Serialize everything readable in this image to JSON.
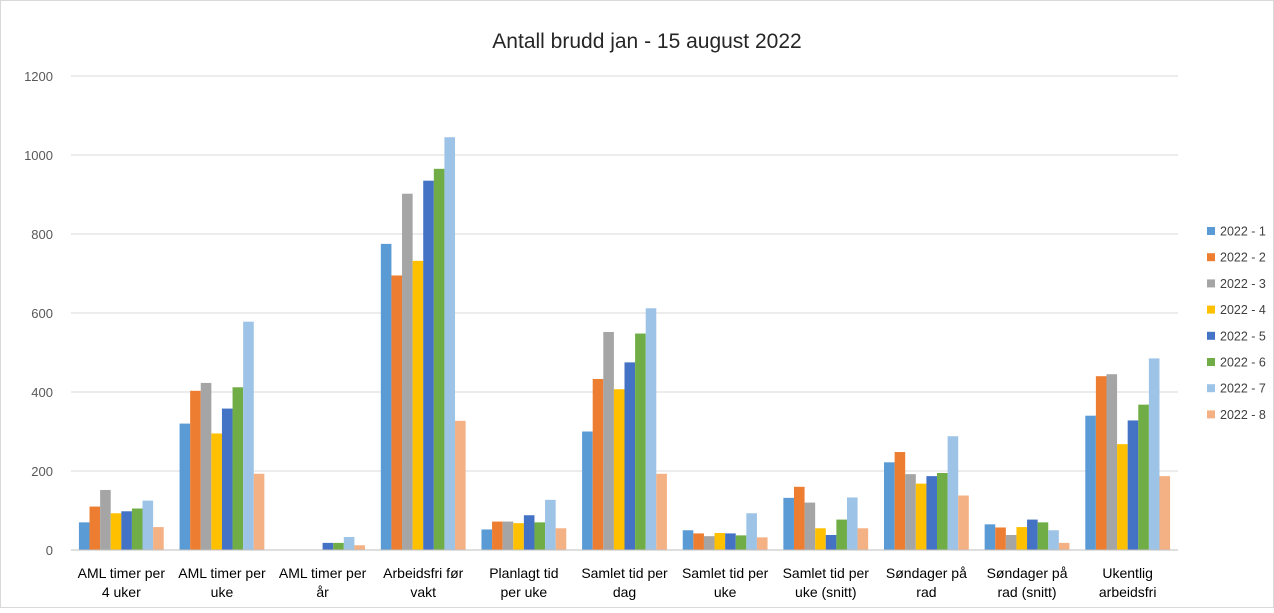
{
  "chart_data": {
    "type": "bar",
    "title": "Antall brudd jan - 15 august 2022",
    "xlabel": "",
    "ylabel": "",
    "ylim": [
      0,
      1200
    ],
    "yticks": [
      "0",
      "200",
      "400",
      "600",
      "800",
      "1000",
      "1200"
    ],
    "grid": true,
    "legend_position": "right",
    "categories": [
      [
        "AML timer per",
        "4 uker"
      ],
      [
        "AML timer per",
        "uke"
      ],
      [
        "AML timer per",
        "år"
      ],
      [
        "Arbeidsfri før",
        "vakt"
      ],
      [
        "Planlagt tid",
        "per uke"
      ],
      [
        "Samlet tid per",
        "dag"
      ],
      [
        "Samlet tid per",
        "uke"
      ],
      [
        "Samlet tid per",
        "uke (snitt)"
      ],
      [
        "Søndager på",
        "rad"
      ],
      [
        "Søndager på",
        "rad (snitt)"
      ],
      [
        "Ukentlig",
        "arbeidsfri"
      ]
    ],
    "series": [
      {
        "name": "2022 - 1",
        "color": "#5b9bd5",
        "values": [
          70,
          320,
          0,
          775,
          52,
          300,
          50,
          132,
          222,
          65,
          340
        ]
      },
      {
        "name": "2022 - 2",
        "color": "#ed7d31",
        "values": [
          110,
          403,
          0,
          695,
          72,
          433,
          42,
          160,
          248,
          57,
          440
        ]
      },
      {
        "name": "2022 - 3",
        "color": "#a5a5a5",
        "values": [
          152,
          423,
          0,
          902,
          72,
          552,
          35,
          120,
          192,
          38,
          445
        ]
      },
      {
        "name": "2022 - 4",
        "color": "#ffc000",
        "values": [
          93,
          295,
          0,
          732,
          68,
          407,
          43,
          55,
          168,
          58,
          268
        ]
      },
      {
        "name": "2022 - 5",
        "color": "#4472c4",
        "values": [
          98,
          358,
          18,
          935,
          88,
          475,
          42,
          38,
          187,
          77,
          328
        ]
      },
      {
        "name": "2022 - 6",
        "color": "#70ad47",
        "values": [
          105,
          412,
          18,
          965,
          70,
          548,
          37,
          77,
          195,
          70,
          368
        ]
      },
      {
        "name": "2022 - 7",
        "color": "#9dc3e6",
        "values": [
          125,
          578,
          33,
          1045,
          127,
          612,
          93,
          133,
          288,
          50,
          485
        ]
      },
      {
        "name": "2022 - 8",
        "color": "#f4b183",
        "values": [
          58,
          193,
          12,
          327,
          55,
          193,
          32,
          55,
          138,
          18,
          187
        ]
      }
    ]
  }
}
